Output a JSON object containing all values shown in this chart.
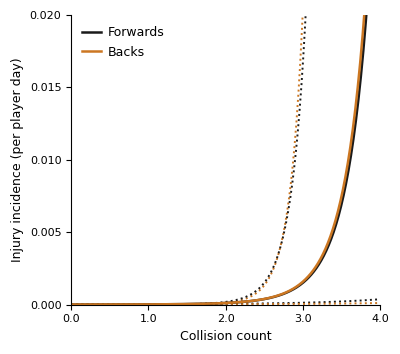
{
  "x_min": 0.0,
  "x_max": 4.0,
  "y_min": 0.0,
  "y_max": 0.02,
  "x_ticks": [
    0.0,
    1.0,
    2.0,
    3.0,
    4.0
  ],
  "y_ticks": [
    0.0,
    0.005,
    0.01,
    0.015,
    0.02
  ],
  "xlabel": "Collision count",
  "ylabel": "Injury incidence (per player day)",
  "forwards_color": "#1a1a1a",
  "backs_color": "#cc7722",
  "linewidth_solid": 1.8,
  "linewidth_dotted": 1.4,
  "legend_labels": [
    "Forwards",
    "Backs"
  ],
  "n_points": 500,
  "curves": {
    "fwd_mean": {
      "a": 0.3,
      "b": 1.1,
      "c": -12.5
    },
    "bck_mean": {
      "a": 0.3,
      "b": 1.15,
      "c": -12.6
    },
    "fwd_upper": {
      "a": 0.6,
      "b": 1.5,
      "c": -14.0
    },
    "fwd_lower": {
      "a": 0.05,
      "b": 0.7,
      "c": -11.5
    },
    "bck_upper": {
      "a": 0.7,
      "b": 1.6,
      "c": -15.0
    },
    "bck_lower": {
      "a": 0.03,
      "b": 0.6,
      "c": -12.0
    }
  }
}
